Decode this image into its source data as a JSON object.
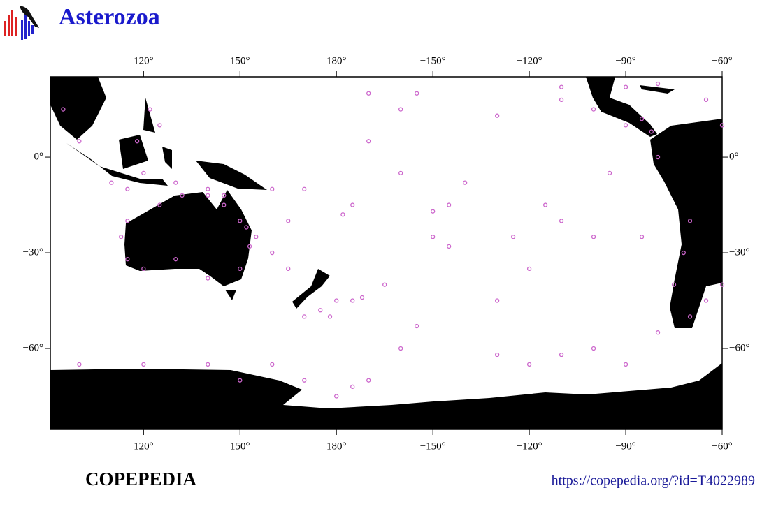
{
  "header": {
    "title": "Asterozoa"
  },
  "map": {
    "xlim": [
      91,
      -60
    ],
    "ylim": [
      -85.4,
      25.2
    ],
    "xticks": [
      {
        "value": 120,
        "label": "120°"
      },
      {
        "value": 150,
        "label": "150°"
      },
      {
        "value": 180,
        "label": "180°"
      },
      {
        "value": -150,
        "label": "−150°"
      },
      {
        "value": -120,
        "label": "−120°"
      },
      {
        "value": -90,
        "label": "−90°"
      },
      {
        "value": -60,
        "label": "−60°"
      }
    ],
    "yticks": [
      {
        "value": 0,
        "label": "0°"
      },
      {
        "value": -30,
        "label": "−30°"
      },
      {
        "value": -60,
        "label": "−60°"
      }
    ],
    "point_color": "#cc66cc",
    "occurrences": {
      "lon": [
        -170,
        -160,
        -155,
        -150,
        -145,
        -140,
        -175,
        -178,
        170,
        165,
        160,
        -160,
        -155,
        -130,
        -120,
        -110,
        -100,
        -90,
        -80,
        -85,
        -100,
        -110,
        -115,
        -125,
        -95,
        -90,
        -100,
        -110,
        -130,
        180,
        175,
        170,
        -175,
        -172,
        178,
        165,
        160,
        155,
        150,
        145,
        140,
        130,
        120,
        115,
        110,
        118,
        125,
        122,
        100,
        95,
        160,
        170,
        180,
        -175,
        -170,
        120,
        100,
        140,
        150,
        115,
        113,
        115,
        120,
        130,
        140,
        150,
        153,
        152,
        145,
        140,
        132,
        125,
        -70,
        -65,
        -60,
        -75,
        -72,
        -70,
        -80,
        -82,
        -85,
        -60,
        -65,
        -80,
        -90,
        -110,
        -120,
        -145,
        -150,
        -130,
        -165,
        -160,
        -170
      ],
      "lat": [
        20,
        15,
        20,
        -17,
        -15,
        -8,
        -15,
        -18,
        -10,
        -20,
        -10,
        -60,
        -53,
        -62,
        -65,
        -62,
        -60,
        -65,
        -55,
        -25,
        -25,
        -20,
        -15,
        -25,
        -5,
        10,
        15,
        18,
        13,
        -45,
        -48,
        -50,
        -45,
        -44,
        -50,
        -35,
        -30,
        -25,
        -20,
        -12,
        -10,
        -8,
        -5,
        -10,
        -8,
        5,
        10,
        15,
        5,
        15,
        -65,
        -70,
        -75,
        -72,
        -70,
        -65,
        -65,
        -65,
        -70,
        -20,
        -25,
        -32,
        -35,
        -32,
        -38,
        -35,
        -28,
        -22,
        -15,
        -12,
        -12,
        -15,
        -50,
        -45,
        -40,
        -40,
        -30,
        -20,
        0,
        8,
        12,
        10,
        18,
        23,
        22,
        22,
        -35,
        -28,
        -25,
        -45,
        -40,
        -5,
        5
      ]
    }
  },
  "footer": {
    "brand": "COPEPEDIA",
    "url": "https://copepedia.org/?id=T4022989"
  }
}
